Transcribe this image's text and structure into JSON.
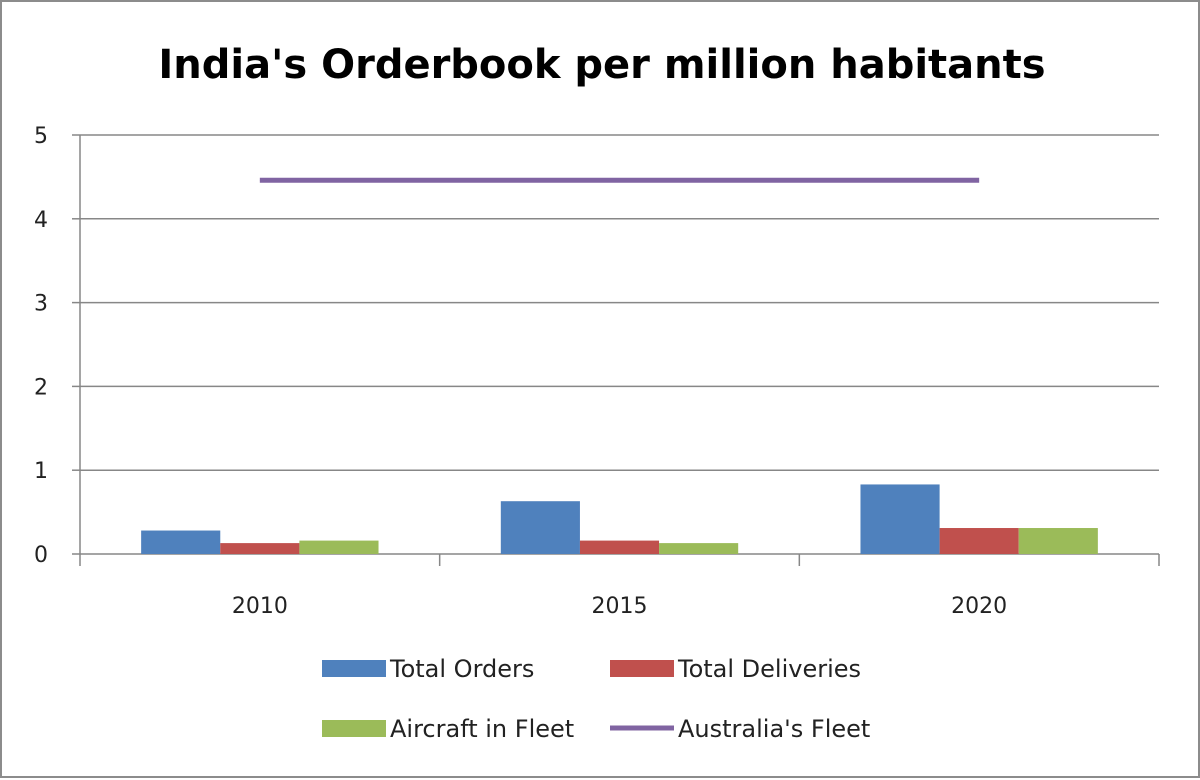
{
  "chart_data": {
    "type": "bar",
    "title": "India's Orderbook per million habitants",
    "xlabel": "",
    "ylabel": "",
    "ylim": [
      0,
      5
    ],
    "yticks": [
      "0",
      "1",
      "2",
      "3",
      "4",
      "5"
    ],
    "categories": [
      "2010",
      "2015",
      "2020"
    ],
    "grid": true,
    "legend_position": "bottom",
    "series": [
      {
        "name": "Total Orders",
        "kind": "bar",
        "color": "#4f81bd",
        "values": [
          0.28,
          0.63,
          0.83
        ]
      },
      {
        "name": "Total Deliveries",
        "kind": "bar",
        "color": "#c0504d",
        "values": [
          0.13,
          0.16,
          0.31
        ]
      },
      {
        "name": "Aircraft in Fleet",
        "kind": "bar",
        "color": "#9bbb59",
        "values": [
          0.16,
          0.13,
          0.31
        ]
      },
      {
        "name": "Australia's Fleet",
        "kind": "line",
        "color": "#8064a2",
        "values": [
          4.46,
          4.46,
          4.46
        ]
      }
    ]
  }
}
